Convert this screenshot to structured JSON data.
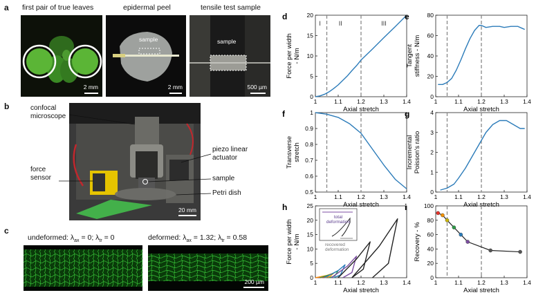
{
  "panel_a": {
    "letter": "a",
    "captions": [
      "first pair of true leaves",
      "epidermal peel",
      "tensile test sample"
    ],
    "inner_labels": {
      "peel_sample": "sample",
      "tensile_sample": "sample"
    },
    "scalebars": [
      "2 mm",
      "2 mm",
      "500 µm"
    ]
  },
  "panel_b": {
    "letter": "b",
    "labels": {
      "microscope": "confocal\nmicroscope",
      "force_sensor": "force\nsensor",
      "actuator": "piezo linear\nactuator",
      "sample": "sample",
      "petri": "Petri dish"
    },
    "scalebar": "20 mm"
  },
  "panel_c": {
    "letter": "c",
    "left_caption": {
      "prefix": "undeformed: λ",
      "ax_sub": "ax",
      "mid": " = 0; λ",
      "tr_sub": "tr",
      "suffix": " = 0"
    },
    "right_caption": {
      "prefix": "deformed: λ",
      "ax_sub": "ax",
      "mid": " = 1.32; λ",
      "tr_sub": "tr",
      "suffix": " = 0.58"
    },
    "scalebar": "200 µm"
  },
  "chart_data": [
    {
      "id": "d",
      "type": "line",
      "xlabel": "Axial stretch",
      "ylabel": "Force per width\n- N/m",
      "xlim": [
        1,
        1.4
      ],
      "ylim": [
        0,
        20
      ],
      "xticks": [
        1,
        1.1,
        1.2,
        1.3,
        1.4
      ],
      "yticks": [
        0,
        5,
        10,
        15,
        20
      ],
      "vlines": [
        1.05,
        1.2
      ],
      "region_labels": [
        {
          "text": "I",
          "x": 1.02
        },
        {
          "text": "II",
          "x": 1.11
        },
        {
          "text": "III",
          "x": 1.3
        }
      ],
      "series": [
        {
          "x": [
            1.0,
            1.02,
            1.04,
            1.06,
            1.08,
            1.1,
            1.12,
            1.14,
            1.16,
            1.18,
            1.2,
            1.25,
            1.3,
            1.35,
            1.4
          ],
          "y": [
            0,
            0.2,
            0.6,
            1.2,
            2.0,
            2.9,
            4.0,
            5.1,
            6.4,
            7.6,
            9.0,
            11.7,
            14.5,
            17.2,
            20.0
          ]
        }
      ]
    },
    {
      "id": "e",
      "type": "line",
      "xlabel": "Axial stretch",
      "ylabel": "Tangent\nstiffness - N/m",
      "xlim": [
        1,
        1.4
      ],
      "ylim": [
        0,
        80
      ],
      "xticks": [
        1,
        1.1,
        1.2,
        1.3,
        1.4
      ],
      "yticks": [
        0,
        20,
        40,
        60,
        80
      ],
      "vlines": [
        1.05,
        1.2
      ],
      "series": [
        {
          "x": [
            1.01,
            1.03,
            1.05,
            1.07,
            1.09,
            1.11,
            1.13,
            1.15,
            1.17,
            1.19,
            1.2,
            1.22,
            1.25,
            1.28,
            1.3,
            1.33,
            1.36,
            1.38,
            1.39
          ],
          "y": [
            12,
            12,
            14,
            18,
            26,
            36,
            47,
            57,
            65,
            70,
            70,
            68,
            69,
            69,
            68,
            69,
            69,
            67,
            66
          ]
        }
      ]
    },
    {
      "id": "f",
      "type": "line",
      "xlabel": "Axial stretch",
      "ylabel": "Transverse\nstretch",
      "xlim": [
        1,
        1.4
      ],
      "ylim": [
        0.5,
        1
      ],
      "xticks": [
        1,
        1.1,
        1.2,
        1.3,
        1.4
      ],
      "yticks": [
        0.5,
        0.6,
        0.7,
        0.8,
        0.9,
        1
      ],
      "vlines": [
        1.05,
        1.2
      ],
      "series": [
        {
          "x": [
            1.0,
            1.05,
            1.1,
            1.15,
            1.2,
            1.25,
            1.3,
            1.35,
            1.4
          ],
          "y": [
            1.0,
            0.99,
            0.97,
            0.93,
            0.87,
            0.77,
            0.67,
            0.58,
            0.52
          ]
        }
      ]
    },
    {
      "id": "g",
      "type": "line",
      "xlabel": "Axial stretch",
      "ylabel": "Incremental\nPoisson's ratio",
      "xlim": [
        1,
        1.4
      ],
      "ylim": [
        0,
        4
      ],
      "xticks": [
        1,
        1.1,
        1.2,
        1.3,
        1.4
      ],
      "yticks": [
        0,
        1,
        2,
        3,
        4
      ],
      "vlines": [
        1.05,
        1.2
      ],
      "series": [
        {
          "x": [
            1.02,
            1.05,
            1.08,
            1.1,
            1.13,
            1.16,
            1.19,
            1.22,
            1.25,
            1.28,
            1.31,
            1.34,
            1.37,
            1.39
          ],
          "y": [
            0.1,
            0.2,
            0.4,
            0.7,
            1.2,
            1.8,
            2.4,
            3.0,
            3.4,
            3.6,
            3.6,
            3.4,
            3.2,
            3.2
          ]
        }
      ]
    },
    {
      "id": "h",
      "type": "line",
      "xlabel": "Axial stretch",
      "ylabel": "Force per width\n- N/m",
      "xlim": [
        1,
        1.4
      ],
      "ylim": [
        0,
        25
      ],
      "xticks": [
        1,
        1.1,
        1.2,
        1.3,
        1.4
      ],
      "yticks": [
        0,
        5,
        10,
        15,
        20,
        25
      ],
      "inset_labels": {
        "total": "total\ndeformation",
        "recovered": "recovered\ndeformation"
      },
      "series": [
        {
          "color": "#e6332a",
          "x": [
            1.0,
            1.04,
            1.06,
            1.045,
            1.02
          ],
          "y": [
            0,
            0.5,
            0.9,
            0.3,
            0
          ]
        },
        {
          "color": "#f39200",
          "x": [
            1.0,
            1.05,
            1.08,
            1.065,
            1.04
          ],
          "y": [
            0,
            0.8,
            1.6,
            0.5,
            0
          ]
        },
        {
          "color": "#2d9a47",
          "x": [
            1.02,
            1.07,
            1.1,
            1.085,
            1.06
          ],
          "y": [
            0,
            1.2,
            2.5,
            0.6,
            0
          ]
        },
        {
          "color": "#2b7bb9",
          "x": [
            1.04,
            1.1,
            1.13,
            1.11,
            1.08
          ],
          "y": [
            0,
            2.5,
            4.5,
            1.0,
            0
          ]
        },
        {
          "color": "#7b4ea0",
          "x": [
            1.07,
            1.14,
            1.18,
            1.16,
            1.12
          ],
          "y": [
            0,
            4.0,
            7.5,
            1.8,
            0
          ]
        },
        {
          "color": "#222222",
          "x": [
            1.1,
            1.18,
            1.24,
            1.21,
            1.16
          ],
          "y": [
            0,
            6.5,
            12.5,
            3.0,
            0
          ]
        },
        {
          "color": "#222222",
          "x": [
            1.16,
            1.28,
            1.36,
            1.32,
            1.25
          ],
          "y": [
            0,
            11.0,
            20.5,
            5.0,
            0
          ]
        }
      ]
    },
    {
      "id": "i",
      "type": "scatter",
      "xlabel": "Axial stretch",
      "ylabel": "Recovery - %",
      "xlim": [
        1,
        1.4
      ],
      "ylim": [
        0,
        100
      ],
      "xticks": [
        1,
        1.1,
        1.2,
        1.3,
        1.4
      ],
      "yticks": [
        0,
        20,
        40,
        60,
        80,
        100
      ],
      "vlines": [
        1.05,
        1.2
      ],
      "series": [
        {
          "x": [
            1.01,
            1.03,
            1.05,
            1.08,
            1.11,
            1.14,
            1.24,
            1.37
          ],
          "y": [
            90,
            87,
            80,
            70,
            60,
            50,
            38,
            36
          ],
          "colors": [
            "#e6332a",
            "#f39200",
            "#c8b400",
            "#2d9a47",
            "#2b7bb9",
            "#7b4ea0",
            "#555555",
            "#555555"
          ]
        }
      ]
    }
  ]
}
